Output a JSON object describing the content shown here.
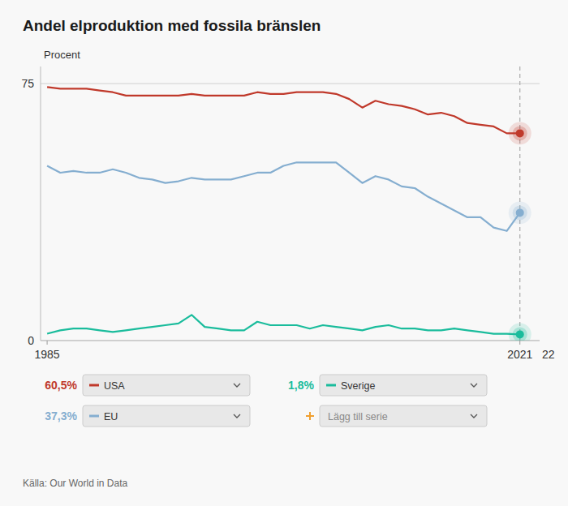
{
  "chart_data": {
    "type": "line",
    "title": "Andel elproduktion med fossila bränslen",
    "y_label": "Procent",
    "annotations": [
      "22",
      "Lägg till serie",
      "Källa: Our World in Data"
    ],
    "x": [
      1985,
      1986,
      1987,
      1988,
      1989,
      1990,
      1991,
      1992,
      1993,
      1994,
      1995,
      1996,
      1997,
      1998,
      1999,
      2000,
      2001,
      2002,
      2003,
      2004,
      2005,
      2006,
      2007,
      2008,
      2009,
      2010,
      2011,
      2012,
      2013,
      2014,
      2015,
      2016,
      2017,
      2018,
      2019,
      2020,
      2021
    ],
    "series": [
      {
        "name": "USA",
        "color": "#c0392b",
        "values": [
          74.0,
          73.5,
          73.5,
          73.5,
          73.0,
          72.5,
          71.5,
          71.5,
          71.5,
          71.5,
          71.5,
          72.0,
          71.5,
          71.5,
          71.5,
          71.5,
          72.5,
          72.0,
          72.0,
          72.5,
          72.5,
          72.5,
          72.0,
          70.5,
          68.0,
          70.0,
          69.0,
          68.5,
          67.5,
          66.0,
          66.5,
          65.5,
          63.5,
          63.0,
          62.5,
          60.5,
          60.5
        ],
        "value_labels": [
          null,
          null,
          null,
          null,
          null,
          null,
          null,
          null,
          null,
          null,
          null,
          null,
          null,
          null,
          null,
          null,
          null,
          null,
          null,
          null,
          null,
          null,
          null,
          null,
          null,
          null,
          null,
          null,
          null,
          null,
          null,
          null,
          null,
          null,
          null,
          null,
          "60,5%"
        ]
      },
      {
        "name": "EU",
        "color": "#85aed0",
        "values": [
          51.0,
          49.0,
          49.5,
          49.0,
          49.0,
          50.0,
          49.0,
          47.5,
          47.0,
          46.0,
          46.5,
          47.5,
          47.0,
          47.0,
          47.0,
          48.0,
          49.0,
          49.0,
          51.0,
          52.0,
          52.0,
          52.0,
          52.0,
          49.0,
          46.0,
          48.0,
          47.0,
          45.0,
          44.5,
          42.0,
          40.0,
          38.0,
          36.0,
          36.0,
          33.0,
          32.0,
          37.3
        ],
        "value_labels": [
          null,
          null,
          null,
          null,
          null,
          null,
          null,
          null,
          null,
          null,
          null,
          null,
          null,
          null,
          null,
          null,
          null,
          null,
          null,
          null,
          null,
          null,
          null,
          null,
          null,
          null,
          null,
          null,
          null,
          null,
          null,
          null,
          null,
          null,
          null,
          null,
          "37,3%"
        ]
      },
      {
        "name": "Sverige",
        "color": "#1abc9c",
        "values": [
          2.0,
          3.0,
          3.5,
          3.5,
          3.0,
          2.5,
          3.0,
          3.5,
          4.0,
          4.5,
          5.0,
          7.5,
          4.0,
          3.5,
          3.0,
          3.0,
          5.5,
          4.5,
          4.5,
          4.5,
          3.5,
          4.5,
          4.0,
          3.5,
          3.0,
          4.0,
          4.5,
          3.5,
          3.5,
          3.0,
          3.0,
          3.5,
          3.0,
          2.5,
          2.0,
          2.0,
          1.8
        ],
        "value_labels": [
          null,
          null,
          null,
          null,
          null,
          null,
          null,
          null,
          null,
          null,
          null,
          null,
          null,
          null,
          null,
          null,
          null,
          null,
          null,
          null,
          null,
          null,
          null,
          null,
          null,
          null,
          null,
          null,
          null,
          null,
          null,
          null,
          null,
          null,
          null,
          null,
          "1,8%"
        ]
      }
    ],
    "xlim": [
      1984.5,
      2022.5
    ],
    "xticks": [
      1985,
      2021
    ],
    "ylim": [
      0,
      80
    ],
    "yticks": [
      0,
      75
    ],
    "grid": true,
    "legend": "bottom"
  }
}
